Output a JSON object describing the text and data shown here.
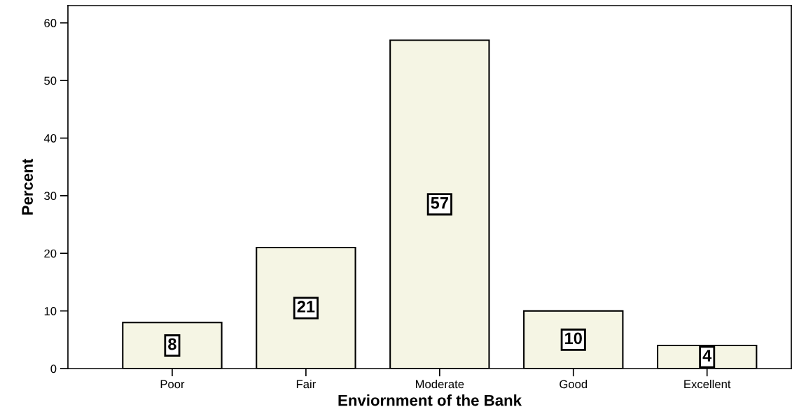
{
  "chart_data": {
    "type": "bar",
    "xlabel": "Enviornment of the Bank",
    "ylabel": "Percent",
    "categories": [
      "Poor",
      "Fair",
      "Moderate",
      "Good",
      "Excellent"
    ],
    "values": [
      8,
      21,
      57,
      10,
      4
    ],
    "color": "#f5f5e4",
    "ylim": [
      0,
      63
    ],
    "yticks": [
      0,
      10,
      20,
      30,
      40,
      50,
      60
    ],
    "grid": false,
    "data_labels": true
  }
}
